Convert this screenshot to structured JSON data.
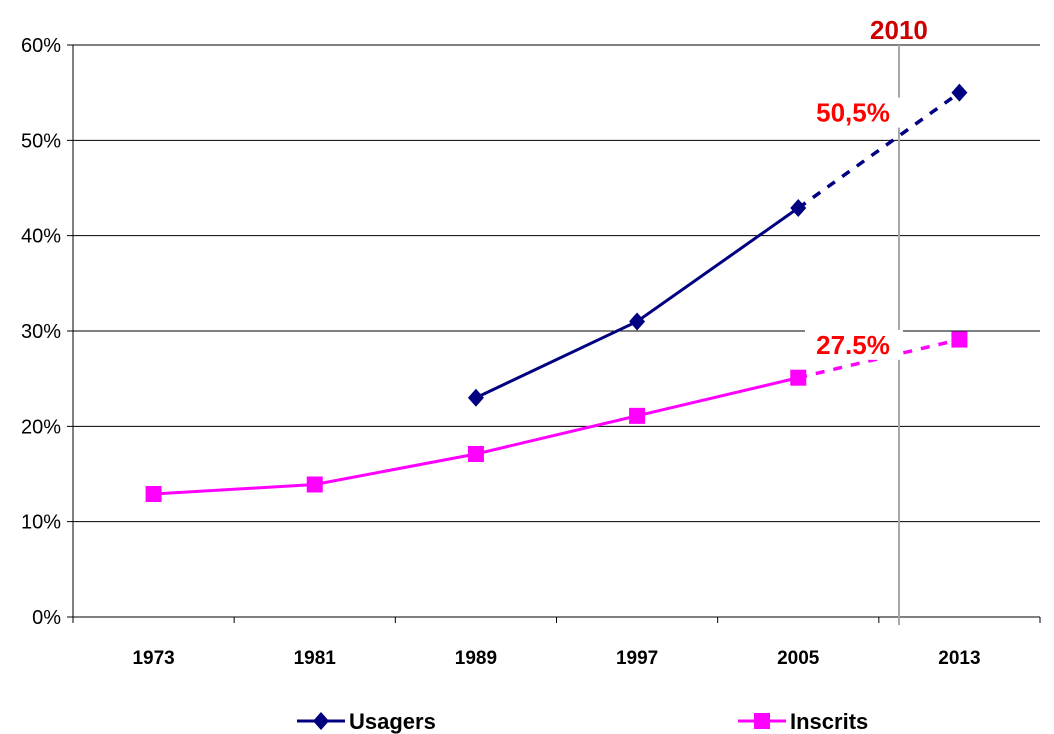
{
  "chart_data": {
    "type": "line",
    "categories": [
      "1973",
      "1981",
      "1989",
      "1997",
      "2005",
      "2013"
    ],
    "ylim": [
      0,
      60
    ],
    "yticks": [
      "0%",
      "10%",
      "20%",
      "30%",
      "40%",
      "50%",
      "60%"
    ],
    "grid": true,
    "legend_position": "bottom",
    "series": [
      {
        "name": "Usagers",
        "color": "#000080",
        "marker": "diamond",
        "values": [
          null,
          null,
          23,
          31,
          42.9,
          55
        ],
        "projected_from_index": 4
      },
      {
        "name": "Inscrits",
        "color": "#ff00ff",
        "marker": "square",
        "values": [
          12.9,
          13.9,
          17.1,
          21.1,
          25.1,
          29.1
        ],
        "projected_from_index": 4
      }
    ],
    "reference_line": {
      "x": 2010,
      "label": "2010",
      "color": "#cc0000"
    },
    "annotations": [
      {
        "text": "50,5%",
        "x": 2010,
        "y": 50.5,
        "color": "#ff0000"
      },
      {
        "text": "27.5%",
        "x": 2010,
        "y": 27.5,
        "color": "#ff0000"
      }
    ]
  }
}
